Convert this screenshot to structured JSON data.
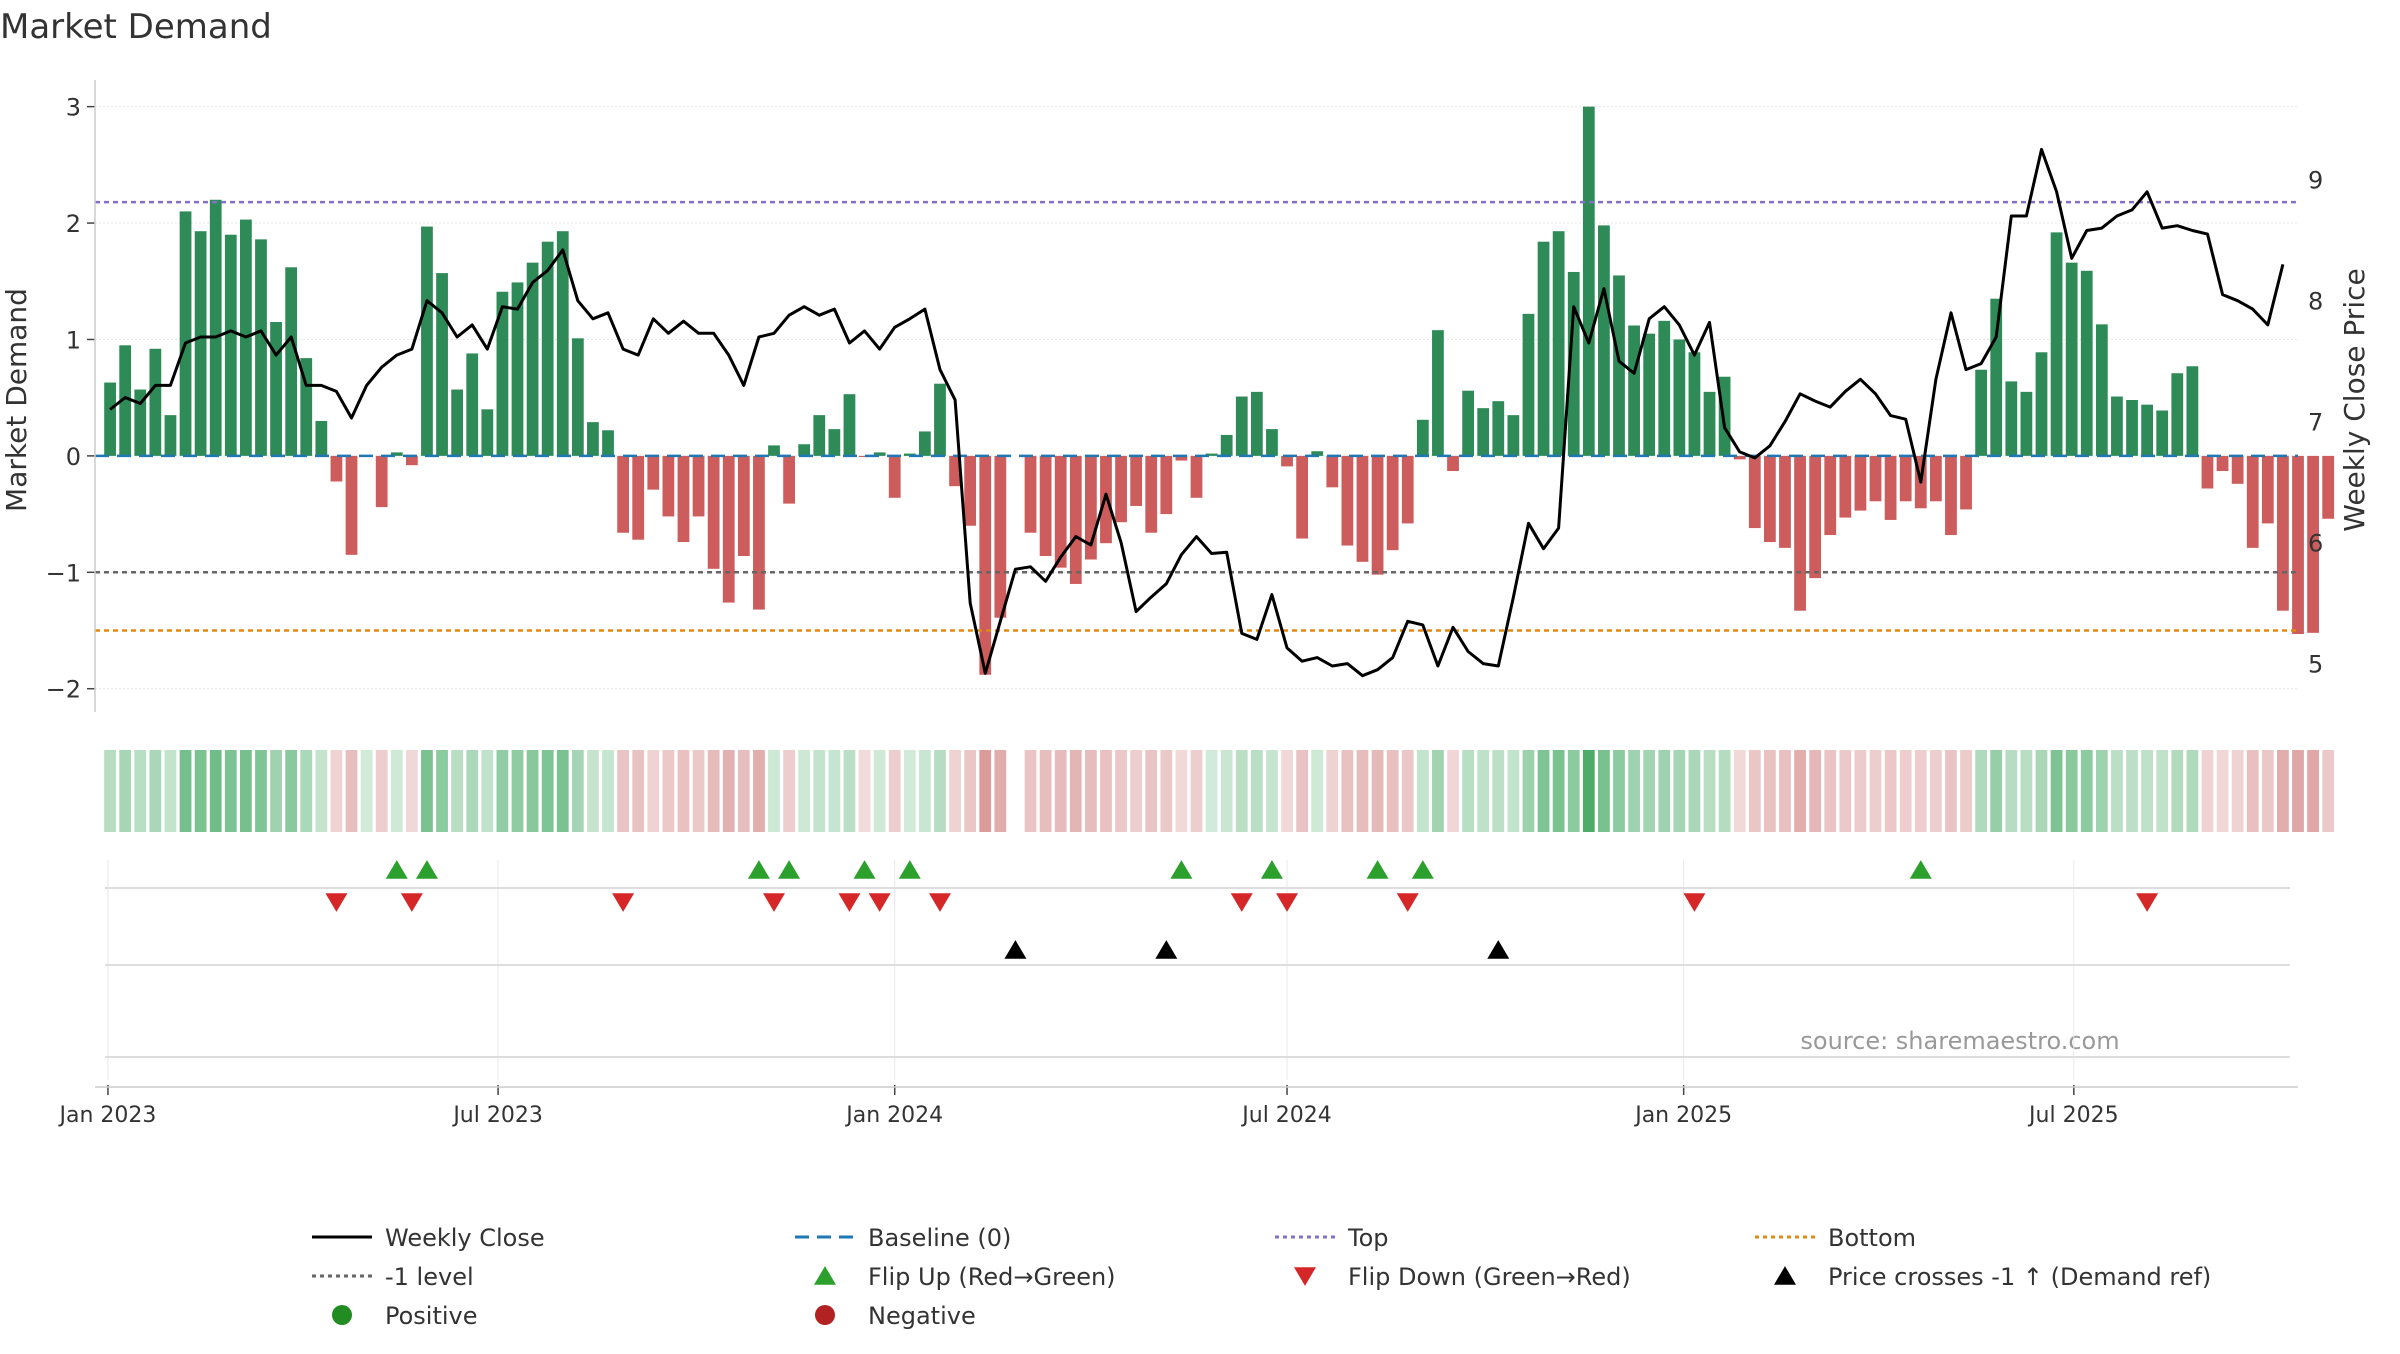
{
  "chart_data": {
    "type": "bar",
    "title": "Market Demand",
    "ylabel": "Market Demand",
    "y2label": "Weekly Close Price",
    "source": "source: sharemaestro.com",
    "xlim": [
      "2022-12-26",
      "2025-10-13"
    ],
    "ylim": [
      -2.2,
      3.1
    ],
    "y2lim": [
      4.6,
      9.7
    ],
    "yticks": [
      {
        "v": 3,
        "label": "3"
      },
      {
        "v": 2,
        "label": "2"
      },
      {
        "v": 1,
        "label": "1"
      },
      {
        "v": 0,
        "label": "0"
      },
      {
        "v": -1,
        "label": "−1"
      },
      {
        "v": -2,
        "label": "−2"
      }
    ],
    "y2ticks": [
      {
        "v": 9,
        "label": "9"
      },
      {
        "v": 8,
        "label": "8"
      },
      {
        "v": 7,
        "label": "7"
      },
      {
        "v": 6,
        "label": "6"
      },
      {
        "v": 5,
        "label": "5"
      }
    ],
    "xticks": [
      {
        "date": "2023-01-01",
        "label": "Jan 2023"
      },
      {
        "date": "2023-07-01",
        "label": "Jul 2023"
      },
      {
        "date": "2024-01-01",
        "label": "Jan 2024"
      },
      {
        "date": "2024-07-01",
        "label": "Jul 2024"
      },
      {
        "date": "2025-01-01",
        "label": "Jan 2025"
      },
      {
        "date": "2025-07-01",
        "label": "Jul 2025"
      }
    ],
    "start_date": "2023-01-02",
    "week_days": 7,
    "levels": {
      "top": 2.18,
      "minus_one": -1,
      "bottom": -1.5,
      "baseline": 0
    },
    "colors": {
      "positive": "#2e8b57",
      "negative": "#cd5c5c",
      "top": "#8470c8",
      "minus_one": "#666666",
      "bottom": "#e08a10",
      "baseline": "#1f77b4",
      "price": "#000000",
      "flip_up": "#2ca02c",
      "flip_down": "#d62728"
    },
    "demand": [
      0.63,
      0.95,
      0.57,
      0.92,
      0.35,
      2.1,
      1.93,
      2.2,
      1.9,
      2.03,
      1.86,
      1.15,
      1.62,
      0.84,
      0.3,
      -0.22,
      -0.85,
      0,
      -0.44,
      0.03,
      -0.08,
      1.97,
      1.57,
      0.57,
      0.88,
      0.4,
      1.41,
      1.49,
      1.66,
      1.84,
      1.93,
      1.01,
      0.29,
      0.22,
      -0.66,
      -0.72,
      -0.29,
      -0.52,
      -0.74,
      -0.52,
      -0.97,
      -1.26,
      -0.86,
      -1.32,
      0.09,
      -0.41,
      0.1,
      0.35,
      0.23,
      0.53,
      -0.01,
      0.03,
      -0.36,
      0.02,
      0.21,
      0.62,
      -0.26,
      -0.6,
      -1.88,
      -1.39,
      null,
      -0.66,
      -0.86,
      -0.96,
      -1.1,
      -0.89,
      -0.75,
      -0.57,
      -0.43,
      -0.66,
      -0.5,
      -0.04,
      -0.36,
      0.02,
      0.18,
      0.51,
      0.55,
      0.23,
      -0.09,
      -0.71,
      0.04,
      -0.27,
      -0.77,
      -0.91,
      -1.02,
      -0.81,
      -0.58,
      0.31,
      1.08,
      -0.13,
      0.56,
      0.41,
      0.47,
      0.35,
      1.22,
      1.84,
      1.93,
      1.58,
      3.0,
      1.98,
      1.55,
      1.12,
      1.05,
      1.16,
      1.0,
      0.89,
      0.55,
      0.68,
      -0.03,
      -0.62,
      -0.74,
      -0.79,
      -1.33,
      -1.05,
      -0.68,
      -0.53,
      -0.47,
      -0.39,
      -0.55,
      -0.39,
      -0.45,
      -0.39,
      -0.68,
      -0.46,
      0.74,
      1.35,
      0.64,
      0.55,
      0.89,
      1.92,
      1.66,
      1.59,
      1.13,
      0.51,
      0.48,
      0.44,
      0.39,
      0.71,
      0.77,
      -0.28,
      -0.13,
      -0.24,
      -0.79,
      -0.58,
      -1.33,
      -1.53,
      -1.52,
      -0.54
    ],
    "price": [
      7.1,
      7.2,
      7.15,
      7.3,
      7.3,
      7.65,
      7.7,
      7.7,
      7.75,
      7.7,
      7.75,
      7.55,
      7.7,
      7.3,
      7.3,
      7.25,
      7.03,
      7.3,
      7.45,
      7.55,
      7.6,
      8.0,
      7.9,
      7.7,
      7.8,
      7.6,
      7.95,
      7.93,
      8.15,
      8.25,
      8.42,
      8.0,
      7.85,
      7.9,
      7.6,
      7.55,
      7.85,
      7.73,
      7.83,
      7.73,
      7.73,
      7.55,
      7.3,
      7.7,
      7.73,
      7.88,
      7.95,
      7.88,
      7.93,
      7.65,
      7.75,
      7.6,
      7.78,
      7.85,
      7.93,
      7.43,
      7.18,
      5.5,
      4.92,
      5.35,
      5.78,
      5.8,
      5.68,
      5.88,
      6.05,
      5.98,
      6.4,
      6.0,
      5.43,
      5.55,
      5.66,
      5.9,
      6.05,
      5.91,
      5.92,
      5.25,
      5.2,
      5.57,
      5.13,
      5.02,
      5.05,
      4.98,
      5.0,
      4.9,
      4.95,
      5.05,
      5.35,
      5.32,
      4.98,
      5.3,
      5.1,
      5.0,
      4.98,
      5.55,
      6.16,
      5.95,
      6.12,
      7.95,
      7.65,
      8.1,
      7.5,
      7.4,
      7.85,
      7.95,
      7.8,
      7.55,
      7.82,
      6.95,
      6.75,
      6.7,
      6.8,
      7.0,
      7.23,
      7.17,
      7.12,
      7.25,
      7.35,
      7.23,
      7.05,
      7.02,
      6.5,
      7.35,
      7.9,
      7.43,
      7.48,
      7.7,
      8.7,
      8.7,
      9.25,
      8.9,
      8.35,
      8.58,
      8.6,
      8.7,
      8.75,
      8.9,
      8.6,
      8.62,
      8.58,
      8.55,
      8.05,
      8.0,
      7.93,
      7.8,
      8.3
    ],
    "flips_up_weeks": [
      19,
      21,
      43,
      45,
      50,
      53,
      71,
      77,
      84,
      87,
      120
    ],
    "flips_down_weeks": [
      15,
      20,
      34,
      44,
      49,
      51,
      55,
      75,
      78,
      86,
      105,
      135
    ],
    "price_cross_weeks": [
      60,
      70,
      92
    ],
    "legend": [
      {
        "kind": "line",
        "color": "#000000",
        "dash": "",
        "label": "Weekly Close"
      },
      {
        "kind": "line",
        "color": "#1f77b4",
        "dash": "14,8",
        "label": "Baseline (0)"
      },
      {
        "kind": "line",
        "color": "#8470c8",
        "dash": "4,4",
        "label": "Top"
      },
      {
        "kind": "line",
        "color": "#e08a10",
        "dash": "4,4",
        "label": "Bottom"
      },
      {
        "kind": "line",
        "color": "#666666",
        "dash": "4,4",
        "label": "-1 level"
      },
      {
        "kind": "up",
        "color": "#2ca02c",
        "label": "Flip Up (Red→Green)"
      },
      {
        "kind": "down",
        "color": "#d62728",
        "label": "Flip Down (Green→Red)"
      },
      {
        "kind": "up",
        "color": "#000000",
        "label": "Price crosses -1 ↑ (Demand ref)"
      },
      {
        "kind": "dot",
        "color": "#228b22",
        "label": "Positive"
      },
      {
        "kind": "dot",
        "color": "#b22222",
        "label": "Negative"
      }
    ]
  }
}
